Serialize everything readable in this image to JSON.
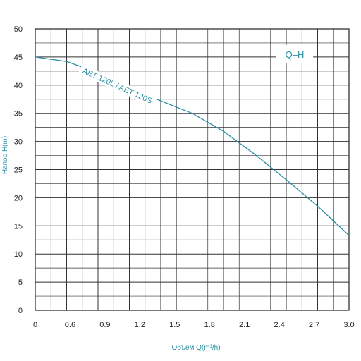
{
  "chart_data": {
    "type": "line",
    "legend": "Q–H",
    "xlabel": "Объем Q(m³/h)",
    "ylabel": "Напор H(m)",
    "x_ticks": [
      "0",
      "0.6",
      "0.9",
      "1.2",
      "1.5",
      "1.8",
      "2.1",
      "2.4",
      "2.7",
      "3.0"
    ],
    "y_ticks": [
      "0",
      "5",
      "10",
      "15",
      "20",
      "25",
      "30",
      "35",
      "40",
      "45",
      "50"
    ],
    "xlim": [
      0,
      3.0
    ],
    "ylim": [
      0,
      50
    ],
    "grid": true,
    "series": [
      {
        "name": "AET 120L / AET 120S",
        "x": [
          0,
          0.3,
          0.6,
          0.9,
          1.2,
          1.5,
          1.8,
          2.1,
          2.4,
          2.7,
          3.0
        ],
        "y": [
          45,
          44.2,
          42.2,
          39.6,
          37.2,
          35,
          31.8,
          27.7,
          23.2,
          18.5,
          13.3
        ]
      }
    ],
    "line_color": "#2a8fa3"
  }
}
